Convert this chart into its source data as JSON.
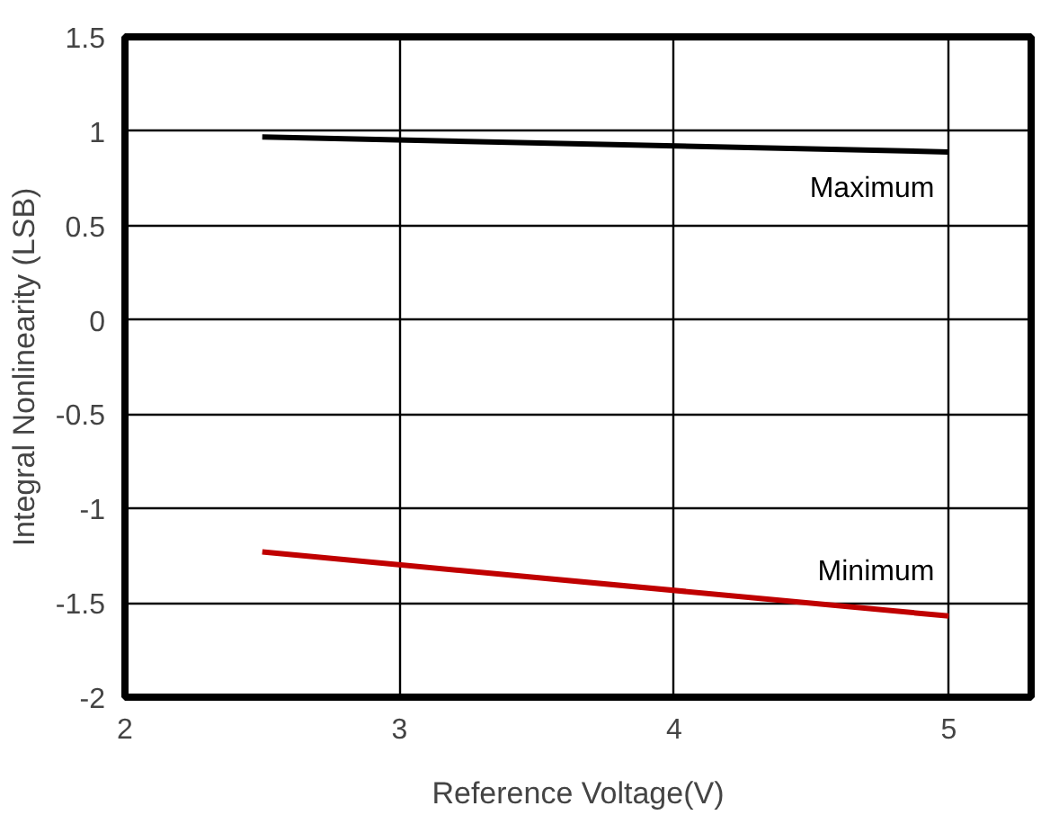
{
  "chart_data": {
    "type": "line",
    "xlabel": "Reference Voltage(V)",
    "ylabel": "Integral Nonlinearity (LSB)",
    "x": [
      2.5,
      5
    ],
    "series": [
      {
        "name": "Maximum",
        "color": "#000000",
        "values": [
          0.97,
          0.89
        ]
      },
      {
        "name": "Minimum",
        "color": "#c00000",
        "values": [
          -1.23,
          -1.57
        ]
      }
    ],
    "xlim": [
      2,
      5.3
    ],
    "xticks": [
      2,
      3,
      4,
      5
    ],
    "ylim": [
      -2,
      1.5
    ],
    "yticks": [
      1.5,
      1,
      0.5,
      0,
      -0.5,
      -1,
      -1.5,
      -2
    ],
    "grid": true,
    "marker": "none",
    "line_style": "solid"
  }
}
